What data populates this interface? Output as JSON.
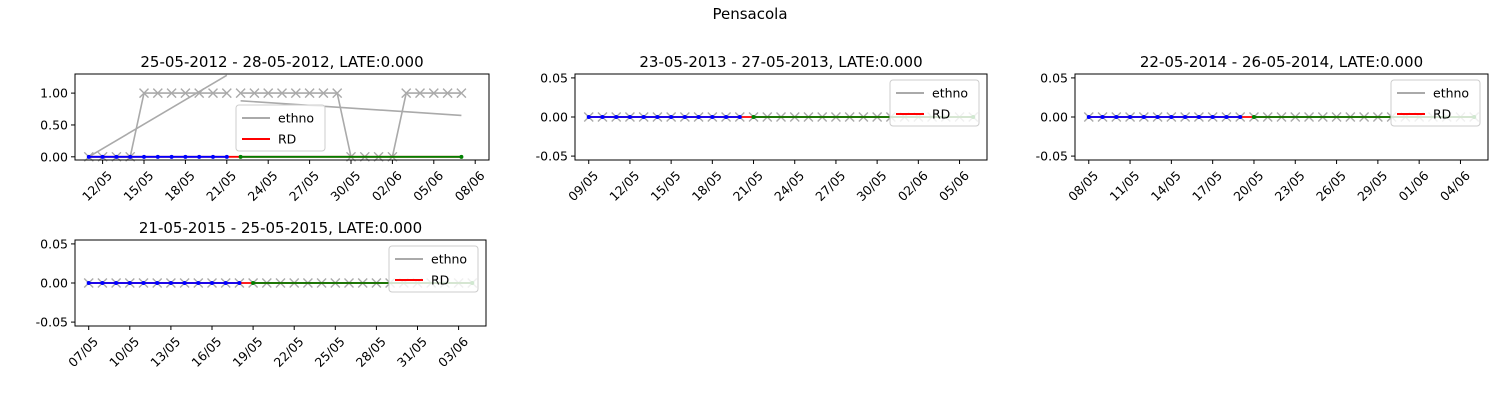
{
  "suptitle": "Pensacola",
  "chart_data": [
    {
      "type": "line",
      "title": "25-05-2012 - 28-05-2012, LATE:0.000",
      "xlabel": "",
      "ylabel": "",
      "date_range": [
        "2012-05-10",
        "2012-06-09"
      ],
      "ylim": [
        -0.05,
        1.3
      ],
      "yticks": [
        0.0,
        0.5,
        1.0
      ],
      "xtick_dates": [
        "2012-05-12",
        "2012-05-15",
        "2012-05-18",
        "2012-05-21",
        "2012-05-24",
        "2012-05-27",
        "2012-05-30",
        "2012-06-02",
        "2012-06-05",
        "2012-06-08"
      ],
      "xtick_labels": [
        "12/05",
        "15/05",
        "18/05",
        "21/05",
        "24/05",
        "27/05",
        "30/05",
        "02/06",
        "05/06",
        "08/06"
      ],
      "legend": {
        "position": "center-right",
        "entries": [
          {
            "label": "ethno",
            "color": "#aaaaaa"
          },
          {
            "label": "RD",
            "color": "#ff0000"
          }
        ]
      },
      "series": [
        {
          "name": "ethno",
          "color": "#aaaaaa",
          "marker": "x",
          "x": [
            "2012-05-11",
            "2012-05-12",
            "2012-05-13",
            "2012-05-14",
            "2012-05-15",
            "2012-05-16",
            "2012-05-17",
            "2012-05-18",
            "2012-05-19",
            "2012-05-20",
            "2012-05-21"
          ],
          "y": [
            0,
            0,
            0,
            0,
            1,
            1,
            1,
            1,
            1,
            1,
            1
          ]
        },
        {
          "color": "#aaaaaa",
          "marker": "x",
          "x": [
            "2012-05-22",
            "2012-05-23",
            "2012-05-24",
            "2012-05-25",
            "2012-05-26",
            "2012-05-27",
            "2012-05-28",
            "2012-05-29",
            "2012-05-30",
            "2012-05-31",
            "2012-06-01",
            "2012-06-02",
            "2012-06-03",
            "2012-06-04",
            "2012-06-05",
            "2012-06-06",
            "2012-06-07"
          ],
          "y": [
            1,
            1,
            1,
            1,
            1,
            1,
            1,
            1,
            0,
            0,
            0,
            0,
            1,
            1,
            1,
            1,
            1
          ]
        },
        {
          "color": "#aaaaaa",
          "marker": "none",
          "x": [
            "2012-05-11",
            "2012-05-21"
          ],
          "y": [
            0,
            1.28
          ]
        },
        {
          "color": "#aaaaaa",
          "marker": "none",
          "x": [
            "2012-05-22",
            "2012-06-07"
          ],
          "y": [
            0.88,
            0.65
          ]
        },
        {
          "name": "RD",
          "color": "#ff0000",
          "marker": "none",
          "x": [
            "2012-05-11",
            "2012-06-07"
          ],
          "y": [
            0,
            0
          ]
        },
        {
          "color": "#0000ff",
          "marker": "o",
          "x": [
            "2012-05-11",
            "2012-05-12",
            "2012-05-13",
            "2012-05-14",
            "2012-05-15",
            "2012-05-16",
            "2012-05-17",
            "2012-05-18",
            "2012-05-19",
            "2012-05-20",
            "2012-05-21"
          ],
          "y": [
            0,
            0,
            0,
            0,
            0,
            0,
            0,
            0,
            0,
            0,
            0
          ]
        },
        {
          "color": "#008000",
          "marker": "o",
          "x": [
            "2012-05-22",
            "2012-06-07"
          ],
          "y": [
            0,
            0
          ]
        }
      ]
    },
    {
      "type": "line",
      "title": "23-05-2013 - 27-05-2013, LATE:0.000",
      "xlabel": "",
      "ylabel": "",
      "date_range": [
        "2013-05-08",
        "2013-06-07"
      ],
      "ylim": [
        -0.055,
        0.055
      ],
      "yticks": [
        -0.05,
        0.0,
        0.05
      ],
      "xtick_dates": [
        "2013-05-09",
        "2013-05-12",
        "2013-05-15",
        "2013-05-18",
        "2013-05-21",
        "2013-05-24",
        "2013-05-27",
        "2013-05-30",
        "2013-06-02",
        "2013-06-05"
      ],
      "xtick_labels": [
        "09/05",
        "12/05",
        "15/05",
        "18/05",
        "21/05",
        "24/05",
        "27/05",
        "30/05",
        "02/06",
        "05/06"
      ],
      "legend": {
        "position": "upper right",
        "entries": [
          {
            "label": "ethno",
            "color": "#aaaaaa"
          },
          {
            "label": "RD",
            "color": "#ff0000"
          }
        ]
      },
      "series": [
        {
          "name": "ethno",
          "color": "#aaaaaa",
          "marker": "x",
          "x": [
            "2013-05-09",
            "2013-05-10",
            "2013-05-11",
            "2013-05-12",
            "2013-05-13",
            "2013-05-14",
            "2013-05-15",
            "2013-05-16",
            "2013-05-17",
            "2013-05-18",
            "2013-05-19",
            "2013-05-20"
          ],
          "y": [
            0,
            0,
            0,
            0,
            0,
            0,
            0,
            0,
            0,
            0,
            0,
            0
          ]
        },
        {
          "color": "#aaaaaa",
          "marker": "x",
          "x": [
            "2013-05-21",
            "2013-05-22",
            "2013-05-23",
            "2013-05-24",
            "2013-05-25",
            "2013-05-26",
            "2013-05-27",
            "2013-05-28",
            "2013-05-29",
            "2013-05-30",
            "2013-05-31",
            "2013-06-01",
            "2013-06-02",
            "2013-06-03",
            "2013-06-04",
            "2013-06-05",
            "2013-06-06"
          ],
          "y": [
            0,
            0,
            0,
            0,
            0,
            0,
            0,
            0,
            0,
            0,
            0,
            0,
            0,
            0,
            0,
            0,
            0
          ]
        },
        {
          "name": "RD",
          "color": "#ff0000",
          "marker": "none",
          "x": [
            "2013-05-09",
            "2013-06-06"
          ],
          "y": [
            0,
            0
          ]
        },
        {
          "color": "#0000ff",
          "marker": "o",
          "x": [
            "2013-05-09",
            "2013-05-10",
            "2013-05-11",
            "2013-05-12",
            "2013-05-13",
            "2013-05-14",
            "2013-05-15",
            "2013-05-16",
            "2013-05-17",
            "2013-05-18",
            "2013-05-19",
            "2013-05-20"
          ],
          "y": [
            0,
            0,
            0,
            0,
            0,
            0,
            0,
            0,
            0,
            0,
            0,
            0
          ]
        },
        {
          "color": "#008000",
          "marker": "o",
          "x": [
            "2013-05-21",
            "2013-06-06"
          ],
          "y": [
            0,
            0
          ]
        }
      ]
    },
    {
      "type": "line",
      "title": "22-05-2014 - 26-05-2014, LATE:0.000",
      "xlabel": "",
      "ylabel": "",
      "date_range": [
        "2014-05-07",
        "2014-06-06"
      ],
      "ylim": [
        -0.055,
        0.055
      ],
      "yticks": [
        -0.05,
        0.0,
        0.05
      ],
      "xtick_dates": [
        "2014-05-08",
        "2014-05-11",
        "2014-05-14",
        "2014-05-17",
        "2014-05-20",
        "2014-05-23",
        "2014-05-26",
        "2014-05-29",
        "2014-06-01",
        "2014-06-04"
      ],
      "xtick_labels": [
        "08/05",
        "11/05",
        "14/05",
        "17/05",
        "20/05",
        "23/05",
        "26/05",
        "29/05",
        "01/06",
        "04/06"
      ],
      "legend": {
        "position": "upper right",
        "entries": [
          {
            "label": "ethno",
            "color": "#aaaaaa"
          },
          {
            "label": "RD",
            "color": "#ff0000"
          }
        ]
      },
      "series": [
        {
          "name": "ethno",
          "color": "#aaaaaa",
          "marker": "x",
          "x": [
            "2014-05-08",
            "2014-05-09",
            "2014-05-10",
            "2014-05-11",
            "2014-05-12",
            "2014-05-13",
            "2014-05-14",
            "2014-05-15",
            "2014-05-16",
            "2014-05-17",
            "2014-05-18",
            "2014-05-19"
          ],
          "y": [
            0,
            0,
            0,
            0,
            0,
            0,
            0,
            0,
            0,
            0,
            0,
            0
          ]
        },
        {
          "color": "#aaaaaa",
          "marker": "x",
          "x": [
            "2014-05-20",
            "2014-05-21",
            "2014-05-22",
            "2014-05-23",
            "2014-05-24",
            "2014-05-25",
            "2014-05-26",
            "2014-05-27",
            "2014-05-28",
            "2014-05-29",
            "2014-05-30",
            "2014-05-31",
            "2014-06-01",
            "2014-06-02",
            "2014-06-03",
            "2014-06-04",
            "2014-06-05"
          ],
          "y": [
            0,
            0,
            0,
            0,
            0,
            0,
            0,
            0,
            0,
            0,
            0,
            0,
            0,
            0,
            0,
            0,
            0
          ]
        },
        {
          "name": "RD",
          "color": "#ff0000",
          "marker": "none",
          "x": [
            "2014-05-08",
            "2014-06-05"
          ],
          "y": [
            0,
            0
          ]
        },
        {
          "color": "#0000ff",
          "marker": "o",
          "x": [
            "2014-05-08",
            "2014-05-09",
            "2014-05-10",
            "2014-05-11",
            "2014-05-12",
            "2014-05-13",
            "2014-05-14",
            "2014-05-15",
            "2014-05-16",
            "2014-05-17",
            "2014-05-18",
            "2014-05-19"
          ],
          "y": [
            0,
            0,
            0,
            0,
            0,
            0,
            0,
            0,
            0,
            0,
            0,
            0
          ]
        },
        {
          "color": "#008000",
          "marker": "o",
          "x": [
            "2014-05-20",
            "2014-06-05"
          ],
          "y": [
            0,
            0
          ]
        }
      ]
    },
    {
      "type": "line",
      "title": "21-05-2015 - 25-05-2015, LATE:0.000",
      "xlabel": "",
      "ylabel": "",
      "date_range": [
        "2015-05-06",
        "2015-06-05"
      ],
      "ylim": [
        -0.055,
        0.055
      ],
      "yticks": [
        -0.05,
        0.0,
        0.05
      ],
      "xtick_dates": [
        "2015-05-07",
        "2015-05-10",
        "2015-05-13",
        "2015-05-16",
        "2015-05-19",
        "2015-05-22",
        "2015-05-25",
        "2015-05-28",
        "2015-05-31",
        "2015-06-03"
      ],
      "xtick_labels": [
        "07/05",
        "10/05",
        "13/05",
        "16/05",
        "19/05",
        "22/05",
        "25/05",
        "28/05",
        "31/05",
        "03/06"
      ],
      "legend": {
        "position": "upper right",
        "entries": [
          {
            "label": "ethno",
            "color": "#aaaaaa"
          },
          {
            "label": "RD",
            "color": "#ff0000"
          }
        ]
      },
      "series": [
        {
          "name": "ethno",
          "color": "#aaaaaa",
          "marker": "x",
          "x": [
            "2015-05-07",
            "2015-05-08",
            "2015-05-09",
            "2015-05-10",
            "2015-05-11",
            "2015-05-12",
            "2015-05-13",
            "2015-05-14",
            "2015-05-15",
            "2015-05-16",
            "2015-05-17",
            "2015-05-18"
          ],
          "y": [
            0,
            0,
            0,
            0,
            0,
            0,
            0,
            0,
            0,
            0,
            0,
            0
          ]
        },
        {
          "color": "#aaaaaa",
          "marker": "x",
          "x": [
            "2015-05-19",
            "2015-05-20",
            "2015-05-21",
            "2015-05-22",
            "2015-05-23",
            "2015-05-24",
            "2015-05-25",
            "2015-05-26",
            "2015-05-27",
            "2015-05-28",
            "2015-05-29",
            "2015-05-30",
            "2015-05-31",
            "2015-06-01",
            "2015-06-02",
            "2015-06-03",
            "2015-06-04"
          ],
          "y": [
            0,
            0,
            0,
            0,
            0,
            0,
            0,
            0,
            0,
            0,
            0,
            0,
            0,
            0,
            0,
            0,
            0
          ]
        },
        {
          "name": "RD",
          "color": "#ff0000",
          "marker": "none",
          "x": [
            "2015-05-07",
            "2015-06-04"
          ],
          "y": [
            0,
            0
          ]
        },
        {
          "color": "#0000ff",
          "marker": "o",
          "x": [
            "2015-05-07",
            "2015-05-08",
            "2015-05-09",
            "2015-05-10",
            "2015-05-11",
            "2015-05-12",
            "2015-05-13",
            "2015-05-14",
            "2015-05-15",
            "2015-05-16",
            "2015-05-17",
            "2015-05-18"
          ],
          "y": [
            0,
            0,
            0,
            0,
            0,
            0,
            0,
            0,
            0,
            0,
            0,
            0
          ]
        },
        {
          "color": "#008000",
          "marker": "o",
          "x": [
            "2015-05-19",
            "2015-06-04"
          ],
          "y": [
            0,
            0
          ]
        }
      ]
    }
  ]
}
